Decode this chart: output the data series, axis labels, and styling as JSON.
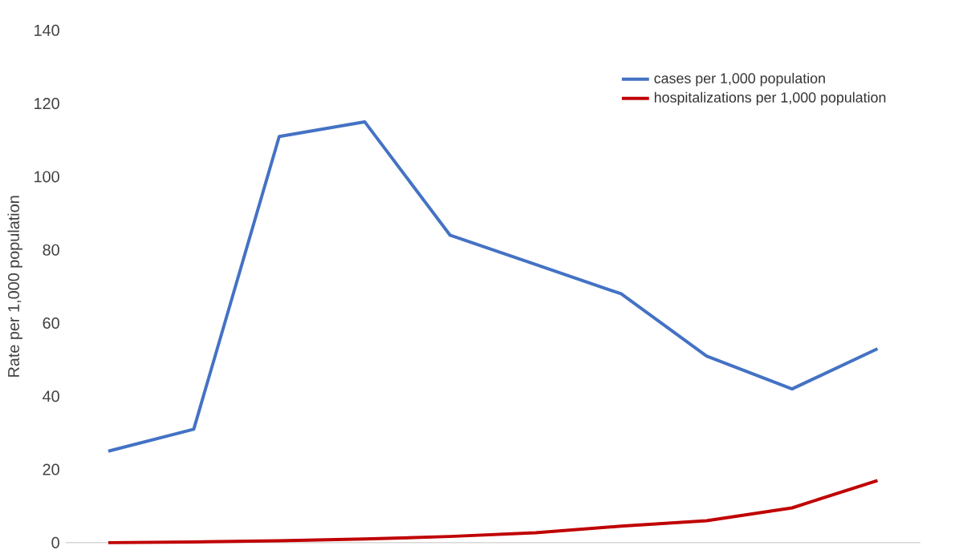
{
  "chart_data": {
    "type": "line",
    "ylabel": "Rate per 1,000 population",
    "categories": [
      null,
      null,
      null,
      null,
      null,
      null,
      null,
      null,
      null,
      null
    ],
    "series": [
      {
        "name": "cases per 1,000 population",
        "color": "#4472c4",
        "values": [
          25,
          31,
          111,
          115,
          84,
          76,
          68,
          51,
          42,
          53
        ]
      },
      {
        "name": "hospitalizations per 1,000 population",
        "color": "#c00000",
        "values": [
          0,
          0.2,
          0.5,
          1,
          1.7,
          2.7,
          4.5,
          6,
          9.5,
          17
        ]
      }
    ],
    "ylim": [
      0,
      140
    ],
    "yticks": [
      0,
      20,
      40,
      60,
      80,
      100,
      120,
      140
    ],
    "legend": "top right",
    "marker": "none",
    "line_style": "solid"
  }
}
